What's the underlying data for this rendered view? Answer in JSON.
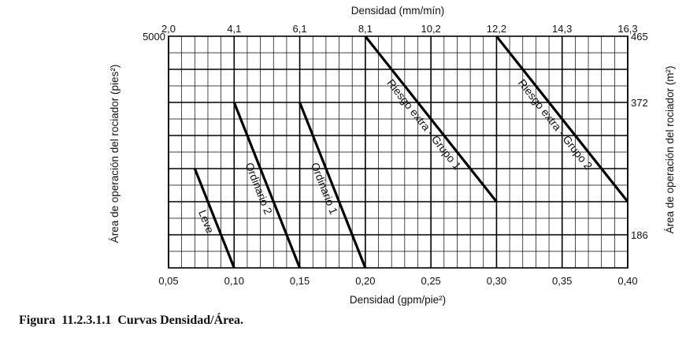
{
  "caption": "Figura  11.2.3.1.1  Curvas Densidad/Área.",
  "chart_data": {
    "type": "line",
    "title": "",
    "xlabel": "Densidad (gpm/pie²)",
    "x_ticks": [
      "0,05",
      "0,10",
      "0,15",
      "0,20",
      "0,25",
      "0,30",
      "0,35",
      "0,40"
    ],
    "x_tick_values": [
      0.05,
      0.1,
      0.15,
      0.2,
      0.25,
      0.3,
      0.35,
      0.4
    ],
    "xlim": [
      0.05,
      0.4
    ],
    "x2label": "Densidad (mm/mín)",
    "x2_ticks": [
      "2,0",
      "4,1",
      "6,1",
      "8,1",
      "10,2",
      "12,2",
      "14,3",
      "16,3"
    ],
    "ylabel": "Área de operación del rociador (pies²)",
    "y_ticks": [
      "5000"
    ],
    "y_tick_values": [
      5000
    ],
    "y2label": "Área de operación del rociador (m²)",
    "y2_ticks": [
      "465",
      "372",
      "186"
    ],
    "y2_tick_values": [
      5000,
      4000,
      2000
    ],
    "ylim": [
      1500,
      5000
    ],
    "grid": true,
    "series": [
      {
        "name": "Leve",
        "x": [
          0.07,
          0.1
        ],
        "y": [
          3000,
          1500
        ]
      },
      {
        "name": "Ordinario 1",
        "x": [
          0.15,
          0.2
        ],
        "y": [
          4000,
          1500
        ]
      },
      {
        "name": "Ordinario 2",
        "x": [
          0.1,
          0.15
        ],
        "y": [
          4000,
          1500
        ]
      },
      {
        "name": "Riesgo extra - Grupo 1",
        "x": [
          0.2,
          0.3
        ],
        "y": [
          5000,
          2500
        ]
      },
      {
        "name": "Riesgo extra - Grupo 2",
        "x": [
          0.3,
          0.4
        ],
        "y": [
          5000,
          2500
        ]
      }
    ]
  }
}
